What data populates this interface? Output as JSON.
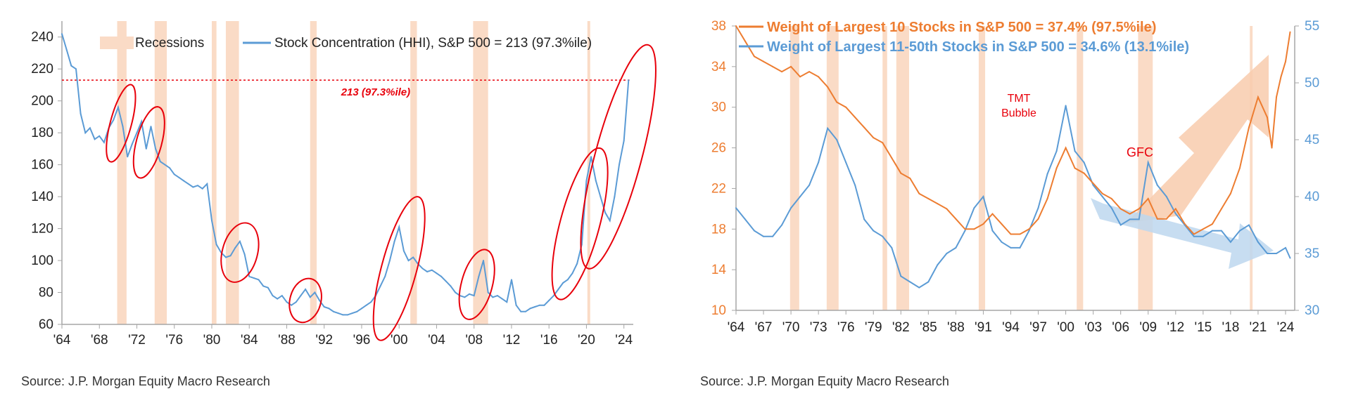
{
  "colors": {
    "recession": "#fadbc6",
    "hhi_line": "#5b9bd5",
    "top10": "#ed7d31",
    "next40": "#5b9bd5",
    "threshold": "#e8000b",
    "circle": "#e8000b",
    "axis": "#a6a6a6",
    "arrow_up": "#f8cbad",
    "arrow_down": "#bdd7ee"
  },
  "left": {
    "legend": {
      "recessions": "Recessions",
      "series": "Stock Concentration (HHI), S&P 500 = 213 (97.3%ile)"
    },
    "threshold_label": "213 (97.3%ile)",
    "source": "Source: J.P. Morgan Equity Macro Research"
  },
  "right": {
    "legend": {
      "top10": "Weight of Largest 10 Stocks in S&P 500 = 37.4% (97.5%ile)",
      "next40": "Weight of Largest 11-50th Stocks in S&P 500 = 34.6% (13.1%ile)"
    },
    "annotations": {
      "tmt_line1": "TMT",
      "tmt_line2": "Bubble",
      "gfc": "GFC"
    },
    "source": "Source: J.P. Morgan Equity Macro Research"
  },
  "chart_data": [
    {
      "type": "line",
      "title": "",
      "xlabel": "",
      "ylabel": "",
      "xlim": [
        1964,
        2025
      ],
      "ylim": [
        60,
        250
      ],
      "x_ticks": [
        "'64",
        "'68",
        "'72",
        "'76",
        "'80",
        "'84",
        "'88",
        "'92",
        "'96",
        "'00",
        "'04",
        "'08",
        "'12",
        "'16",
        "'20",
        "'24"
      ],
      "y_ticks": [
        60,
        80,
        100,
        120,
        140,
        160,
        180,
        200,
        220,
        240
      ],
      "grid": false,
      "legend_position": "top",
      "recessions": [
        [
          1969.9,
          1970.9
        ],
        [
          1973.9,
          1975.2
        ],
        [
          1980.0,
          1980.5
        ],
        [
          1981.5,
          1982.9
        ],
        [
          1990.5,
          1991.2
        ],
        [
          2001.2,
          2001.9
        ],
        [
          2007.9,
          2009.5
        ],
        [
          2020.1,
          2020.4
        ]
      ],
      "threshold": {
        "value": 213
      },
      "series": [
        {
          "name": "Stock Concentration (HHI), S&P 500 = 213 (97.3%ile)",
          "x": [
            1964.0,
            1964.5,
            1965.0,
            1965.5,
            1966.0,
            1966.5,
            1967.0,
            1967.5,
            1968.0,
            1968.5,
            1969.0,
            1969.5,
            1970.0,
            1970.5,
            1971.0,
            1971.5,
            1972.0,
            1972.5,
            1973.0,
            1973.5,
            1974.0,
            1974.5,
            1975.0,
            1975.5,
            1976.0,
            1976.5,
            1977.0,
            1977.5,
            1978.0,
            1978.5,
            1979.0,
            1979.5,
            1980.0,
            1980.5,
            1981.0,
            1981.5,
            1982.0,
            1982.5,
            1983.0,
            1983.5,
            1984.0,
            1984.5,
            1985.0,
            1985.5,
            1986.0,
            1986.5,
            1987.0,
            1987.5,
            1988.0,
            1988.5,
            1989.0,
            1989.5,
            1990.0,
            1990.5,
            1991.0,
            1991.5,
            1992.0,
            1992.5,
            1993.0,
            1993.5,
            1994.0,
            1994.5,
            1995.0,
            1995.5,
            1996.0,
            1996.5,
            1997.0,
            1997.5,
            1998.0,
            1998.5,
            1999.0,
            1999.5,
            2000.0,
            2000.5,
            2001.0,
            2001.5,
            2002.0,
            2002.5,
            2003.0,
            2003.5,
            2004.0,
            2004.5,
            2005.0,
            2005.5,
            2006.0,
            2006.5,
            2007.0,
            2007.5,
            2008.0,
            2008.5,
            2009.0,
            2009.5,
            2010.0,
            2010.5,
            2011.0,
            2011.5,
            2012.0,
            2012.5,
            2013.0,
            2013.5,
            2014.0,
            2014.5,
            2015.0,
            2015.5,
            2016.0,
            2016.5,
            2017.0,
            2017.5,
            2018.0,
            2018.5,
            2019.0,
            2019.5,
            2020.0,
            2020.5,
            2021.0,
            2021.5,
            2022.0,
            2022.5,
            2023.0,
            2023.5,
            2024.0,
            2024.5
          ],
          "values": [
            242,
            232,
            222,
            220,
            192,
            180,
            183,
            176,
            178,
            174,
            183,
            188,
            196,
            184,
            165,
            173,
            180,
            187,
            170,
            184,
            170,
            162,
            160,
            158,
            154,
            152,
            150,
            148,
            146,
            147,
            145,
            148,
            125,
            110,
            105,
            102,
            103,
            108,
            112,
            104,
            90,
            89,
            88,
            84,
            83,
            78,
            76,
            78,
            74,
            72,
            74,
            78,
            82,
            77,
            80,
            75,
            71,
            70,
            68,
            67,
            66,
            66,
            67,
            68,
            70,
            72,
            74,
            78,
            84,
            90,
            100,
            112,
            121,
            106,
            100,
            102,
            98,
            95,
            93,
            94,
            92,
            90,
            87,
            84,
            80,
            78,
            77,
            79,
            78,
            90,
            100,
            80,
            77,
            78,
            76,
            74,
            88,
            72,
            68,
            68,
            70,
            71,
            72,
            72,
            75,
            78,
            82,
            86,
            88,
            92,
            98,
            110,
            150,
            165,
            150,
            140,
            130,
            125,
            140,
            160,
            175,
            213
          ]
        }
      ]
    },
    {
      "type": "line",
      "title": "",
      "xlabel": "",
      "ylabel": "",
      "xlim": [
        1964,
        2025
      ],
      "ylim_left": [
        10,
        38
      ],
      "ylim_right": [
        30,
        55
      ],
      "x_ticks": [
        "'64",
        "'67",
        "'70",
        "'73",
        "'76",
        "'79",
        "'82",
        "'85",
        "'88",
        "'91",
        "'94",
        "'97",
        "'00",
        "'03",
        "'06",
        "'09",
        "'12",
        "'15",
        "'18",
        "'21",
        "'24"
      ],
      "y_ticks_left": [
        10,
        14,
        18,
        22,
        26,
        30,
        34,
        38
      ],
      "y_ticks_right": [
        30,
        35,
        40,
        45,
        50,
        55
      ],
      "grid": false,
      "legend_position": "top",
      "recessions": [
        [
          1969.9,
          1970.9
        ],
        [
          1973.9,
          1975.2
        ],
        [
          1980.0,
          1980.5
        ],
        [
          1981.5,
          1982.9
        ],
        [
          1990.5,
          1991.2
        ],
        [
          2001.2,
          2001.9
        ],
        [
          2007.9,
          2009.5
        ],
        [
          2020.1,
          2020.4
        ]
      ],
      "series": [
        {
          "name": "Weight of Largest 10 Stocks in S&P 500 = 37.4% (97.5%ile)",
          "axis": "left",
          "x": [
            1964.0,
            1965.0,
            1966.0,
            1967.0,
            1968.0,
            1969.0,
            1970.0,
            1971.0,
            1972.0,
            1973.0,
            1974.0,
            1975.0,
            1976.0,
            1977.0,
            1978.0,
            1979.0,
            1980.0,
            1981.0,
            1982.0,
            1983.0,
            1984.0,
            1985.0,
            1986.0,
            1987.0,
            1988.0,
            1989.0,
            1990.0,
            1991.0,
            1992.0,
            1993.0,
            1994.0,
            1995.0,
            1996.0,
            1997.0,
            1998.0,
            1999.0,
            2000.0,
            2001.0,
            2002.0,
            2003.0,
            2004.0,
            2005.0,
            2006.0,
            2007.0,
            2008.0,
            2009.0,
            2010.0,
            2011.0,
            2012.0,
            2013.0,
            2014.0,
            2015.0,
            2016.0,
            2017.0,
            2018.0,
            2019.0,
            2020.0,
            2021.0,
            2022.0,
            2022.5,
            2023.0,
            2023.5,
            2024.0,
            2024.5
          ],
          "values": [
            38,
            36.5,
            35,
            34.5,
            34,
            33.5,
            34,
            33,
            33.5,
            33,
            32,
            30.5,
            30,
            29,
            28,
            27,
            26.5,
            25,
            23.5,
            23,
            21.5,
            21,
            20.5,
            20,
            19,
            18,
            18,
            18.5,
            19.5,
            18.5,
            17.5,
            17.5,
            18,
            19,
            21,
            24,
            26,
            24,
            23.5,
            22.5,
            21.5,
            21,
            20,
            19.5,
            20,
            21,
            19,
            19,
            20,
            18.5,
            17.5,
            18,
            18.5,
            20,
            21.5,
            24,
            28,
            31,
            29,
            26,
            31,
            33,
            34.5,
            37.4
          ]
        },
        {
          "name": "Weight of Largest 11-50th Stocks in S&P 500 = 34.6% (13.1%ile)",
          "axis": "right",
          "x": [
            1964.0,
            1965.0,
            1966.0,
            1967.0,
            1968.0,
            1969.0,
            1970.0,
            1971.0,
            1972.0,
            1973.0,
            1974.0,
            1975.0,
            1976.0,
            1977.0,
            1978.0,
            1979.0,
            1980.0,
            1981.0,
            1982.0,
            1983.0,
            1984.0,
            1985.0,
            1986.0,
            1987.0,
            1988.0,
            1989.0,
            1990.0,
            1991.0,
            1992.0,
            1993.0,
            1994.0,
            1995.0,
            1996.0,
            1997.0,
            1998.0,
            1999.0,
            2000.0,
            2001.0,
            2002.0,
            2003.0,
            2004.0,
            2005.0,
            2006.0,
            2007.0,
            2008.0,
            2009.0,
            2010.0,
            2011.0,
            2012.0,
            2013.0,
            2014.0,
            2015.0,
            2016.0,
            2017.0,
            2018.0,
            2019.0,
            2020.0,
            2021.0,
            2022.0,
            2023.0,
            2024.0,
            2024.5
          ],
          "values": [
            39,
            38,
            37,
            36.5,
            36.5,
            37.5,
            39,
            40,
            41,
            43,
            46,
            45,
            43,
            41,
            38,
            37,
            36.5,
            35.5,
            33,
            32.5,
            32,
            32.5,
            34,
            35,
            35.5,
            37,
            39,
            40,
            37,
            36,
            35.5,
            35.5,
            37,
            39,
            42,
            44,
            48,
            44,
            43,
            41,
            40,
            39,
            37.5,
            38,
            38,
            43,
            41,
            40,
            38.5,
            37.5,
            36.5,
            36.5,
            37,
            37,
            36,
            37,
            37.5,
            36,
            35,
            35,
            35.5,
            34.6
          ]
        }
      ]
    }
  ]
}
